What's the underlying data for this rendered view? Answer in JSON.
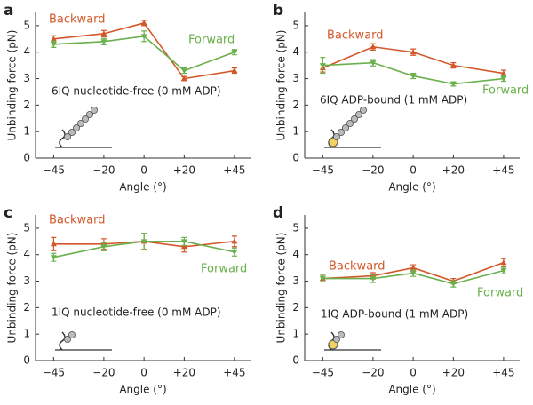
{
  "chart_data": [
    {
      "type": "line",
      "panel_label": "a",
      "annotation": "6IQ  nucleotide-free (0 mM ADP)",
      "xlabel": "Angle (°)",
      "ylabel": "Unbinding force (pN)",
      "x": [
        -45,
        -20,
        0,
        20,
        45
      ],
      "xlim": [
        -54,
        53
      ],
      "ylim": [
        0,
        5.5
      ],
      "xticks": [
        {
          "value": -45,
          "label": "−45"
        },
        {
          "value": -20,
          "label": "−20"
        },
        0,
        {
          "value": 20,
          "label": "+20"
        },
        {
          "value": 45,
          "label": "+45"
        }
      ],
      "yticks": [
        0,
        1,
        2,
        3,
        4,
        5
      ],
      "series": [
        {
          "name": "Backward",
          "color": "#d4572a",
          "values": [
            4.5,
            4.7,
            5.1,
            3.0,
            3.3
          ],
          "errors": [
            0.12,
            0.12,
            0.1,
            0.08,
            0.1
          ]
        },
        {
          "name": "Forward",
          "color": "#6ab04c",
          "values": [
            4.3,
            4.4,
            4.6,
            3.3,
            4.0
          ],
          "errors": [
            0.12,
            0.12,
            0.2,
            0.1,
            0.1
          ]
        }
      ]
    },
    {
      "type": "line",
      "panel_label": "b",
      "annotation": "6IQ ADP-bound (1 mM ADP)",
      "xlabel": "Angle (°)",
      "ylabel": "Unbinding force (pN)",
      "x": [
        -45,
        -20,
        0,
        20,
        45
      ],
      "xlim": [
        -54,
        53
      ],
      "ylim": [
        0,
        5.5
      ],
      "xticks": [
        {
          "value": -45,
          "label": "−45"
        },
        {
          "value": -20,
          "label": "−20"
        },
        0,
        {
          "value": 20,
          "label": "+20"
        },
        {
          "value": 45,
          "label": "+45"
        }
      ],
      "yticks": [
        0,
        1,
        2,
        3,
        4,
        5
      ],
      "series": [
        {
          "name": "Backward",
          "color": "#d4572a",
          "values": [
            3.4,
            4.2,
            4.0,
            3.5,
            3.2
          ],
          "errors": [
            0.15,
            0.12,
            0.12,
            0.1,
            0.12
          ]
        },
        {
          "name": "Forward",
          "color": "#6ab04c",
          "values": [
            3.5,
            3.6,
            3.1,
            2.8,
            3.0
          ],
          "errors": [
            0.3,
            0.12,
            0.1,
            0.08,
            0.1
          ]
        }
      ]
    },
    {
      "type": "line",
      "panel_label": "c",
      "annotation": "1IQ nucleotide-free (0 mM ADP)",
      "xlabel": "Angle (°)",
      "ylabel": "Unbinding force (pN)",
      "x": [
        -45,
        -20,
        0,
        20,
        45
      ],
      "xlim": [
        -54,
        53
      ],
      "ylim": [
        0,
        5.5
      ],
      "xticks": [
        {
          "value": -45,
          "label": "−45"
        },
        {
          "value": -20,
          "label": "−20"
        },
        0,
        {
          "value": 20,
          "label": "+20"
        },
        {
          "value": 45,
          "label": "+45"
        }
      ],
      "yticks": [
        0,
        1,
        2,
        3,
        4,
        5
      ],
      "series": [
        {
          "name": "Backward",
          "color": "#d4572a",
          "values": [
            4.4,
            4.4,
            4.5,
            4.3,
            4.5
          ],
          "errors": [
            0.25,
            0.2,
            0.3,
            0.2,
            0.2
          ]
        },
        {
          "name": "Forward",
          "color": "#6ab04c",
          "values": [
            3.9,
            4.3,
            4.5,
            4.5,
            4.1
          ],
          "errors": [
            0.15,
            0.15,
            0.3,
            0.15,
            0.15
          ]
        }
      ]
    },
    {
      "type": "line",
      "panel_label": "d",
      "annotation": "1IQ ADP-bound (1 mM ADP)",
      "xlabel": "Angle (°)",
      "ylabel": "Unbinding force (pN)",
      "x": [
        -45,
        -20,
        0,
        20,
        45
      ],
      "xlim": [
        -54,
        53
      ],
      "ylim": [
        0,
        5.5
      ],
      "xticks": [
        {
          "value": -45,
          "label": "−45"
        },
        {
          "value": -20,
          "label": "−20"
        },
        0,
        {
          "value": 20,
          "label": "+20"
        },
        {
          "value": 45,
          "label": "+45"
        }
      ],
      "yticks": [
        0,
        1,
        2,
        3,
        4,
        5
      ],
      "series": [
        {
          "name": "Backward",
          "color": "#d4572a",
          "values": [
            3.1,
            3.2,
            3.5,
            3.0,
            3.7
          ],
          "errors": [
            0.12,
            0.12,
            0.12,
            0.1,
            0.15
          ]
        },
        {
          "name": "Forward",
          "color": "#6ab04c",
          "values": [
            3.1,
            3.1,
            3.3,
            2.9,
            3.4
          ],
          "errors": [
            0.12,
            0.15,
            0.12,
            0.12,
            0.12
          ]
        }
      ]
    }
  ]
}
